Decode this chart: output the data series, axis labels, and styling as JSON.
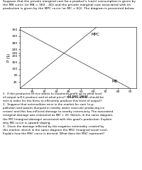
{
  "top_text": "Suppose that the private marginal cost for a product's (corn) consumption is given by\nthe MB curve (or MB = 360 – 4Q) and the private marginal cost associated with its\nproduction is given by the MPC curve (or MC = 6Q). The diagram is presented below.",
  "ylabel": "P ($)",
  "xlabel": "Q per year",
  "yticks": [
    40,
    80,
    120,
    160,
    200,
    216,
    240,
    280,
    320,
    360
  ],
  "xticks": [
    10,
    20,
    30,
    40,
    50,
    60,
    70,
    80,
    90
  ],
  "ylim": [
    0,
    375
  ],
  "xlim": [
    0,
    95
  ],
  "MPC_label": "MPC",
  "MB_label": "MB",
  "background_color": "#ffffff",
  "line_color": "#000000",
  "q1": "1.  If the producers of rice wants to maximize profit up to what level of output will it produce and at what price? What condition should be met in order for the firms to efficiently produce this level of output?",
  "q2": "2.  Suppose that externalities exist in the market for corn (e.g., pollution and wastes dumped in nearby water reservoir producing ice cream) and this has inflicted damage to nearby community. The associated marginal damage was estimated as MD = 20. Sketch, in the same diagram, the MD (marginal damage) associated with this good’s production. Explain why MD curve is upward sloping.",
  "q3": "3.  Given the damage inflicted by the negative externality created by this market, sketch in the same diagram the MSC (marginal social cost). Explain how the MSC curve is derived. What does the MSC represent?"
}
